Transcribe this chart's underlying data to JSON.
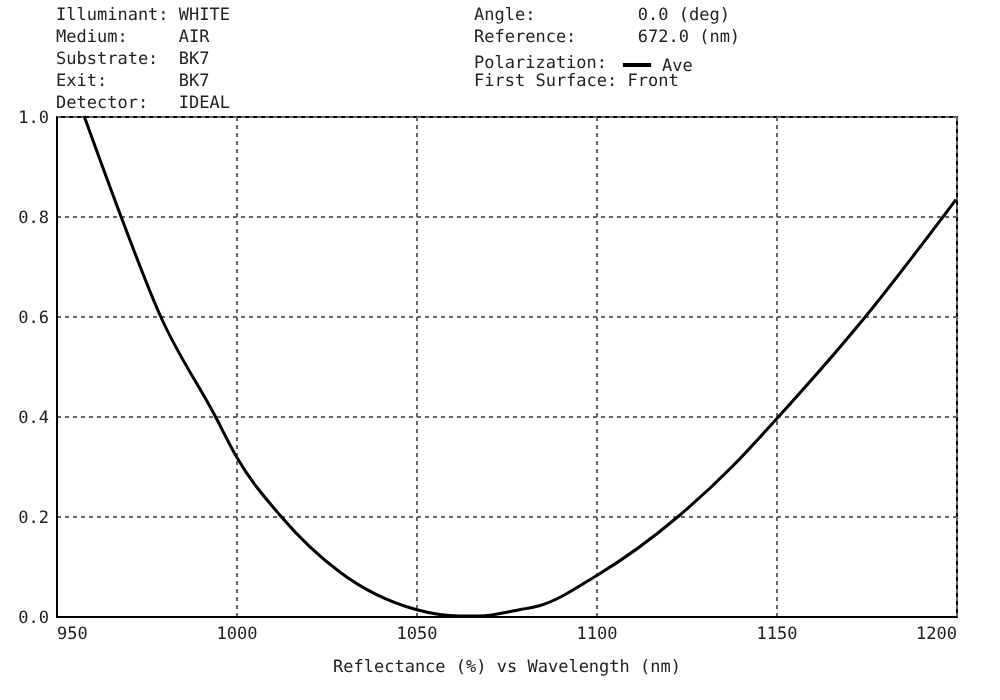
{
  "chart_data": {
    "type": "line",
    "xlabel": "Reflectance (%)  vs  Wavelength (nm)",
    "legend_title": "Polarization:",
    "legend": "top",
    "annotations": [
      "Illuminant: WHITE",
      "Medium:     AIR",
      "Substrate:  BK7",
      "Exit:       BK7",
      "Detector:   IDEAL",
      "Angle:          0.0 (deg)",
      "Reference:      672.0 (nm)",
      "First Surface: Front"
    ],
    "x": [
      957.8,
      968,
      979,
      994.2,
      1000,
      1012.4,
      1029,
      1050,
      1062,
      1067.6,
      1079,
      1084,
      1100,
      1123,
      1138,
      1150,
      1175,
      1200
    ],
    "series": [
      {
        "name": "Ave",
        "color": "#000000",
        "values": [
          1.0,
          0.8,
          0.6,
          0.4,
          0.32,
          0.2,
          0.087,
          0.013,
          0,
          0,
          0.013,
          0.02,
          0.08,
          0.2,
          0.3,
          0.393,
          0.6,
          0.833
        ]
      }
    ],
    "xlim": [
      950,
      1200
    ],
    "xticks": [
      950,
      1000,
      1050,
      1100,
      1150,
      1200
    ],
    "ylim": [
      0,
      1
    ],
    "yticks": [
      {
        "value": 0,
        "label": "0.0"
      },
      0.2,
      0.4,
      0.6,
      0.8,
      {
        "value": 1,
        "label": "1.0"
      }
    ],
    "grid": true,
    "line_style": "solid"
  }
}
